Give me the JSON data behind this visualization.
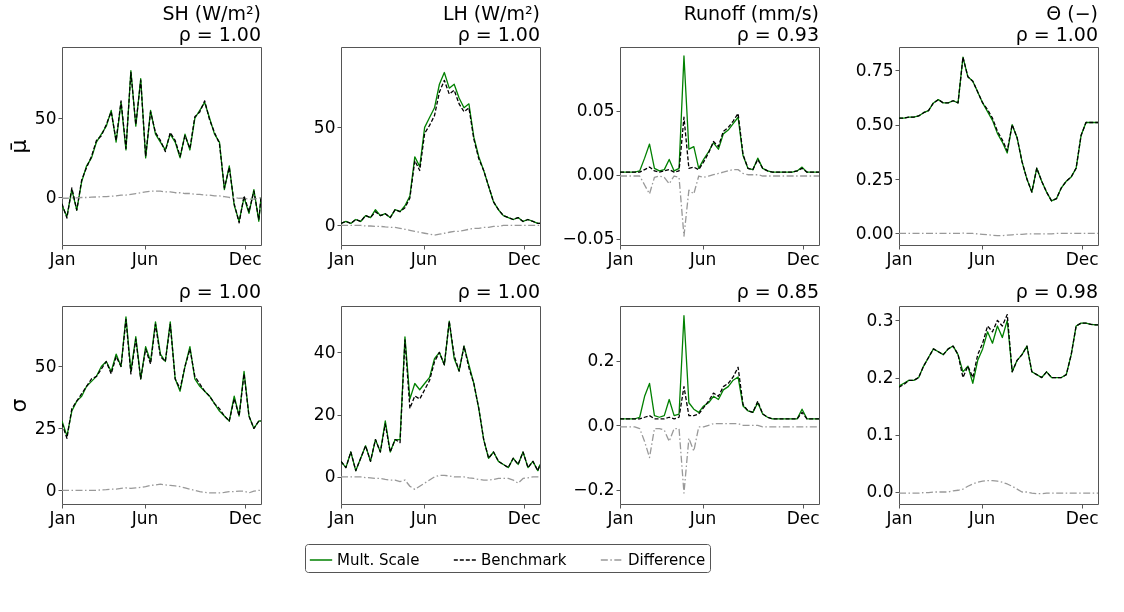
{
  "chart_data": [
    {
      "type": "line",
      "title": "SH (W/m²)",
      "subtitle": "ρ = 1.00",
      "ylabel": "μ̄",
      "x": [
        "--01-01",
        "--01-10",
        "--01-19",
        "--01-28",
        "--02-06",
        "--02-15",
        "--02-24",
        "--03-05",
        "--03-14",
        "--03-23",
        "--04-01",
        "--04-10",
        "--04-19",
        "--04-28",
        "--05-07",
        "--05-16",
        "--05-25",
        "--06-03",
        "--06-12",
        "--06-21",
        "--06-30",
        "--07-09",
        "--07-18",
        "--07-27",
        "--08-05",
        "--08-14",
        "--08-23",
        "--09-01",
        "--09-10",
        "--09-19",
        "--09-28",
        "--10-07",
        "--10-16",
        "--10-25",
        "--11-03",
        "--11-12",
        "--11-21",
        "--11-30",
        "--12-09",
        "--12-18",
        "--12-27",
        "--12-31"
      ],
      "xlim": [
        "--01-01",
        "--12-31"
      ],
      "xticks": [
        {
          "value": "--01-01",
          "label": "Jan"
        },
        {
          "value": "--06-01",
          "label": "Jun"
        },
        {
          "value": "--12-01",
          "label": "Dec"
        }
      ],
      "ylim": [
        -30,
        95
      ],
      "yticks": [
        0,
        50
      ],
      "series": [
        {
          "color": "#008000",
          "line_style": "solid",
          "values": [
            -5,
            -12,
            5,
            -8,
            10,
            20,
            25,
            35,
            40,
            45,
            55,
            35,
            60,
            30,
            80,
            45,
            75,
            25,
            55,
            40,
            35,
            30,
            40,
            35,
            25,
            40,
            30,
            50,
            55,
            60,
            50,
            40,
            35,
            5,
            20,
            -5,
            -15,
            0,
            -10,
            5,
            -15,
            0
          ]
        },
        {
          "color": "#000000",
          "line_style": "dashed",
          "values": [
            -4,
            -13,
            6,
            -8,
            11,
            19,
            26,
            36,
            39,
            46,
            54,
            36,
            61,
            31,
            79,
            46,
            74,
            26,
            54,
            41,
            36,
            29,
            41,
            36,
            26,
            39,
            31,
            51,
            54,
            61,
            49,
            41,
            34,
            6,
            19,
            -4,
            -16,
            1,
            -9,
            4,
            -14,
            0
          ]
        },
        {
          "color": "#999999",
          "line_style": "dashdot",
          "values": [
            -0.5,
            -0.5,
            -0.3,
            -0.2,
            0,
            0,
            0.2,
            0.3,
            0.5,
            0.5,
            0.8,
            1,
            1.5,
            1.5,
            2,
            2.5,
            3,
            3.5,
            4,
            4,
            4,
            3.5,
            3.5,
            3,
            3,
            2.5,
            2.5,
            2,
            2,
            1.5,
            1.5,
            1,
            1,
            0.5,
            0,
            0,
            -0.5,
            -0.5,
            -1,
            -1,
            -0.5,
            0
          ]
        }
      ]
    },
    {
      "type": "line",
      "title": "LH (W/m²)",
      "subtitle": "ρ = 1.00",
      "x": [
        "--01-01",
        "--01-10",
        "--01-19",
        "--01-28",
        "--02-06",
        "--02-15",
        "--02-24",
        "--03-05",
        "--03-14",
        "--03-23",
        "--04-01",
        "--04-10",
        "--04-19",
        "--04-28",
        "--05-07",
        "--05-16",
        "--05-25",
        "--06-03",
        "--06-12",
        "--06-21",
        "--06-30",
        "--07-09",
        "--07-18",
        "--07-27",
        "--08-05",
        "--08-14",
        "--08-23",
        "--09-01",
        "--09-10",
        "--09-19",
        "--09-28",
        "--10-07",
        "--10-16",
        "--10-25",
        "--11-03",
        "--11-12",
        "--11-21",
        "--11-30",
        "--12-09",
        "--12-18",
        "--12-27",
        "--12-31"
      ],
      "xlim": [
        "--01-01",
        "--12-31"
      ],
      "xticks": [
        {
          "value": "--01-01",
          "label": "Jan"
        },
        {
          "value": "--06-01",
          "label": "Jun"
        },
        {
          "value": "--12-01",
          "label": "Dec"
        }
      ],
      "ylim": [
        -10,
        91
      ],
      "yticks": [
        0,
        50
      ],
      "series": [
        {
          "color": "#008000",
          "line_style": "solid",
          "values": [
            1,
            2,
            1,
            3,
            2,
            5,
            4,
            8,
            5,
            6,
            4,
            8,
            7,
            10,
            15,
            35,
            30,
            50,
            55,
            60,
            72,
            78,
            70,
            72,
            65,
            60,
            62,
            45,
            35,
            28,
            20,
            12,
            8,
            5,
            4,
            3,
            4,
            2,
            3,
            2,
            1,
            1
          ]
        },
        {
          "color": "#000000",
          "line_style": "dashed",
          "values": [
            1,
            2,
            1,
            3,
            2,
            5,
            4,
            7,
            5,
            6,
            4,
            8,
            7,
            9,
            14,
            33,
            28,
            47,
            51,
            56,
            68,
            74,
            67,
            69,
            62,
            58,
            60,
            44,
            34,
            28,
            20,
            12,
            8,
            5,
            4,
            3,
            4,
            2,
            3,
            2,
            1,
            1
          ]
        },
        {
          "color": "#999999",
          "line_style": "dashdot",
          "values": [
            0,
            0,
            0,
            0,
            0,
            -0.3,
            -0.3,
            -0.5,
            -0.5,
            -0.8,
            -1,
            -1,
            -1.5,
            -2,
            -2.5,
            -3,
            -3.5,
            -4,
            -4.5,
            -5,
            -4.5,
            -4,
            -3.5,
            -3,
            -3,
            -2.5,
            -2,
            -1.5,
            -1.5,
            -1,
            -1,
            -0.5,
            -0.5,
            0,
            0,
            0,
            0,
            0,
            0,
            0,
            0,
            0
          ]
        }
      ]
    },
    {
      "type": "line",
      "title": "Runoff (mm/s)",
      "subtitle": "ρ = 0.93",
      "x": [
        "--01-01",
        "--01-10",
        "--01-19",
        "--01-28",
        "--02-06",
        "--02-15",
        "--02-24",
        "--03-05",
        "--03-14",
        "--03-23",
        "--04-01",
        "--04-10",
        "--04-19",
        "--04-28",
        "--05-07",
        "--05-16",
        "--05-25",
        "--06-03",
        "--06-12",
        "--06-21",
        "--06-30",
        "--07-09",
        "--07-18",
        "--07-27",
        "--08-05",
        "--08-14",
        "--08-23",
        "--09-01",
        "--09-10",
        "--09-19",
        "--09-28",
        "--10-07",
        "--10-16",
        "--10-25",
        "--11-03",
        "--11-12",
        "--11-21",
        "--11-30",
        "--12-09",
        "--12-18",
        "--12-27",
        "--12-31"
      ],
      "xlim": [
        "--01-01",
        "--12-31"
      ],
      "xticks": [
        {
          "value": "--01-01",
          "label": "Jan"
        },
        {
          "value": "--06-01",
          "label": "Jun"
        },
        {
          "value": "--12-01",
          "label": "Dec"
        }
      ],
      "ylim": [
        -0.055,
        0.1
      ],
      "yticks": [
        {
          "value": -0.05,
          "label": "−0.05"
        },
        {
          "value": 0,
          "label": "0.00"
        },
        {
          "value": 0.05,
          "label": "0.05"
        }
      ],
      "series": [
        {
          "color": "#008000",
          "line_style": "solid",
          "values": [
            0.002,
            0.002,
            0.002,
            0.002,
            0.003,
            0.013,
            0.024,
            0.005,
            0.003,
            0.004,
            0.012,
            0.003,
            0.005,
            0.093,
            0.02,
            0.022,
            0.005,
            0.012,
            0.018,
            0.025,
            0.02,
            0.032,
            0.035,
            0.04,
            0.045,
            0.015,
            0.005,
            0.004,
            0.013,
            0.005,
            0.003,
            0.002,
            0.002,
            0.002,
            0.002,
            0.002,
            0.003,
            0.006,
            0.002,
            0.002,
            0.002,
            0.002
          ]
        },
        {
          "color": "#000000",
          "line_style": "dashed",
          "values": [
            0.002,
            0.002,
            0.002,
            0.002,
            0.002,
            0.004,
            0.006,
            0.003,
            0.002,
            0.003,
            0.004,
            0.002,
            0.003,
            0.045,
            0.005,
            0.006,
            0.004,
            0.01,
            0.017,
            0.026,
            0.022,
            0.034,
            0.037,
            0.042,
            0.048,
            0.016,
            0.005,
            0.004,
            0.012,
            0.005,
            0.003,
            0.002,
            0.002,
            0.002,
            0.002,
            0.002,
            0.003,
            0.005,
            0.002,
            0.002,
            0.002,
            0.002
          ]
        },
        {
          "color": "#999999",
          "line_style": "dashdot",
          "values": [
            -0.001,
            -0.001,
            -0.001,
            -0.001,
            -0.001,
            -0.008,
            -0.015,
            -0.002,
            -0.001,
            -0.002,
            -0.007,
            -0.001,
            -0.002,
            -0.048,
            -0.012,
            -0.015,
            -0.001,
            -0.002,
            -0.001,
            0,
            0.001,
            0.002,
            0.003,
            0.004,
            0.004,
            0.001,
            0,
            0,
            0,
            -0.001,
            -0.001,
            -0.001,
            -0.001,
            -0.001,
            -0.001,
            -0.001,
            -0.001,
            -0.001,
            -0.001,
            -0.001,
            -0.001,
            -0.001
          ]
        }
      ]
    },
    {
      "type": "line",
      "title": "Θ (−)",
      "subtitle": "ρ = 1.00",
      "x": [
        "--01-01",
        "--01-10",
        "--01-19",
        "--01-28",
        "--02-06",
        "--02-15",
        "--02-24",
        "--03-05",
        "--03-14",
        "--03-23",
        "--04-01",
        "--04-10",
        "--04-19",
        "--04-28",
        "--05-07",
        "--05-16",
        "--05-25",
        "--06-03",
        "--06-12",
        "--06-21",
        "--06-30",
        "--07-09",
        "--07-18",
        "--07-27",
        "--08-05",
        "--08-14",
        "--08-23",
        "--09-01",
        "--09-10",
        "--09-19",
        "--09-28",
        "--10-07",
        "--10-16",
        "--10-25",
        "--11-03",
        "--11-12",
        "--11-21",
        "--11-30",
        "--12-09",
        "--12-18",
        "--12-27",
        "--12-31"
      ],
      "xlim": [
        "--01-01",
        "--12-31"
      ],
      "xticks": [
        {
          "value": "--01-01",
          "label": "Jan"
        },
        {
          "value": "--06-01",
          "label": "Jun"
        },
        {
          "value": "--12-01",
          "label": "Dec"
        }
      ],
      "ylim": [
        -0.053,
        0.857
      ],
      "yticks": [
        {
          "value": 0,
          "label": "0.00"
        },
        {
          "value": 0.25,
          "label": "0.25"
        },
        {
          "value": 0.5,
          "label": "0.50"
        },
        {
          "value": 0.75,
          "label": "0.75"
        }
      ],
      "series": [
        {
          "color": "#008000",
          "line_style": "solid",
          "values": [
            0.53,
            0.53,
            0.535,
            0.535,
            0.54,
            0.555,
            0.565,
            0.6,
            0.615,
            0.6,
            0.6,
            0.61,
            0.6,
            0.81,
            0.72,
            0.7,
            0.65,
            0.6,
            0.56,
            0.52,
            0.46,
            0.42,
            0.37,
            0.5,
            0.44,
            0.33,
            0.25,
            0.19,
            0.3,
            0.24,
            0.19,
            0.15,
            0.16,
            0.21,
            0.24,
            0.26,
            0.3,
            0.45,
            0.51,
            0.51,
            0.51,
            0.51
          ]
        },
        {
          "color": "#000000",
          "line_style": "dashed",
          "values": [
            0.53,
            0.53,
            0.535,
            0.535,
            0.54,
            0.555,
            0.565,
            0.6,
            0.615,
            0.6,
            0.6,
            0.61,
            0.6,
            0.81,
            0.72,
            0.7,
            0.65,
            0.6,
            0.57,
            0.53,
            0.47,
            0.43,
            0.38,
            0.5,
            0.44,
            0.33,
            0.25,
            0.19,
            0.3,
            0.24,
            0.19,
            0.15,
            0.16,
            0.21,
            0.24,
            0.26,
            0.3,
            0.45,
            0.51,
            0.51,
            0.51,
            0.51
          ]
        },
        {
          "color": "#999999",
          "line_style": "dashdot",
          "values": [
            0,
            0,
            0,
            0,
            0,
            0,
            0,
            0,
            0,
            0,
            0,
            0,
            0,
            0.002,
            0,
            0,
            -0.002,
            -0.004,
            -0.006,
            -0.008,
            -0.01,
            -0.01,
            -0.008,
            -0.006,
            -0.004,
            -0.004,
            -0.002,
            -0.002,
            -0.002,
            -0.002,
            -0.002,
            -0.002,
            0,
            0,
            0,
            0,
            0,
            0,
            0,
            0,
            0,
            0
          ]
        }
      ]
    },
    {
      "type": "line",
      "title": "ρ = 1.00",
      "ylabel": "σ",
      "x": [
        "--01-01",
        "--01-10",
        "--01-19",
        "--01-28",
        "--02-06",
        "--02-15",
        "--02-24",
        "--03-05",
        "--03-14",
        "--03-23",
        "--04-01",
        "--04-10",
        "--04-19",
        "--04-28",
        "--05-07",
        "--05-16",
        "--05-25",
        "--06-03",
        "--06-12",
        "--06-21",
        "--06-30",
        "--07-09",
        "--07-18",
        "--07-27",
        "--08-05",
        "--08-14",
        "--08-23",
        "--09-01",
        "--09-10",
        "--09-19",
        "--09-28",
        "--10-07",
        "--10-16",
        "--10-25",
        "--11-03",
        "--11-12",
        "--11-21",
        "--11-30",
        "--12-09",
        "--12-18",
        "--12-27",
        "--12-31"
      ],
      "xlim": [
        "--01-01",
        "--12-31"
      ],
      "xticks": [
        {
          "value": "--01-01",
          "label": "Jan"
        },
        {
          "value": "--06-01",
          "label": "Jun"
        },
        {
          "value": "--12-01",
          "label": "Dec"
        }
      ],
      "ylim": [
        -5.5,
        74.4
      ],
      "yticks": [
        0,
        25,
        50
      ],
      "series": [
        {
          "color": "#008000",
          "line_style": "solid",
          "values": [
            28,
            22,
            32,
            36,
            38,
            42,
            44,
            46,
            50,
            52,
            48,
            55,
            50,
            70,
            48,
            62,
            45,
            58,
            52,
            68,
            55,
            52,
            68,
            45,
            40,
            50,
            58,
            45,
            42,
            40,
            38,
            35,
            32,
            30,
            28,
            38,
            30,
            48,
            30,
            25,
            28,
            28
          ]
        },
        {
          "color": "#000000",
          "line_style": "dashed",
          "values": [
            27,
            21,
            33,
            36,
            39,
            42,
            45,
            46,
            49,
            52,
            47,
            54,
            50,
            69,
            47,
            61,
            45,
            57,
            51,
            67,
            54,
            52,
            67,
            45,
            41,
            50,
            57,
            46,
            43,
            40,
            38,
            35,
            33,
            30,
            28,
            37,
            30,
            47,
            30,
            25,
            28,
            28
          ]
        },
        {
          "color": "#999999",
          "line_style": "dashdot",
          "values": [
            0,
            0,
            0,
            0,
            0,
            0,
            0,
            0,
            0.2,
            0.3,
            0.5,
            0.5,
            0.8,
            1,
            0.8,
            1,
            1.2,
            1.5,
            2,
            2.2,
            2.5,
            2.2,
            2,
            1.8,
            1.5,
            1,
            0.5,
            0,
            -0.5,
            -0.8,
            -1,
            -1,
            -1,
            -0.8,
            -0.5,
            -0.5,
            -0.3,
            -0.3,
            -1,
            -0.3,
            0,
            0
          ]
        }
      ]
    },
    {
      "type": "line",
      "title": "ρ = 1.00",
      "legend": "bottom",
      "x": [
        "--01-01",
        "--01-10",
        "--01-19",
        "--01-28",
        "--02-06",
        "--02-15",
        "--02-24",
        "--03-05",
        "--03-14",
        "--03-23",
        "--04-01",
        "--04-10",
        "--04-19",
        "--04-28",
        "--05-07",
        "--05-16",
        "--05-25",
        "--06-03",
        "--06-12",
        "--06-21",
        "--06-30",
        "--07-09",
        "--07-18",
        "--07-27",
        "--08-05",
        "--08-14",
        "--08-23",
        "--09-01",
        "--09-10",
        "--09-19",
        "--09-28",
        "--10-07",
        "--10-16",
        "--10-25",
        "--11-03",
        "--11-12",
        "--11-21",
        "--11-30",
        "--12-09",
        "--12-18",
        "--12-27",
        "--12-31"
      ],
      "xlim": [
        "--01-01",
        "--12-31"
      ],
      "xticks": [
        {
          "value": "--01-01",
          "label": "Jan"
        },
        {
          "value": "--06-01",
          "label": "Jun"
        },
        {
          "value": "--12-01",
          "label": "Dec"
        }
      ],
      "ylim": [
        -8.7,
        54.9
      ],
      "yticks": [
        0,
        20,
        40
      ],
      "series": [
        {
          "name": "Mult. Scale",
          "color": "#008000",
          "line_style": "solid",
          "values": [
            5,
            3,
            8,
            2,
            6,
            10,
            5,
            12,
            8,
            18,
            8,
            12,
            12,
            45,
            25,
            30,
            28,
            30,
            32,
            38,
            40,
            36,
            50,
            38,
            34,
            42,
            36,
            30,
            22,
            12,
            6,
            8,
            5,
            4,
            3,
            6,
            4,
            8,
            3,
            5,
            2,
            4
          ]
        },
        {
          "name": "Benchmark",
          "color": "#000000",
          "line_style": "dashed",
          "values": [
            5,
            3,
            8,
            2,
            6,
            10,
            5,
            12,
            8,
            17,
            8,
            12,
            11,
            44,
            22,
            26,
            25,
            28,
            31,
            37,
            40,
            36,
            50,
            39,
            34,
            42,
            35,
            30,
            22,
            12,
            6,
            8,
            5,
            4,
            3,
            6,
            4,
            8,
            3,
            5,
            2,
            4
          ]
        },
        {
          "name": "Difference",
          "color": "#999999",
          "line_style": "dashdot",
          "values": [
            0,
            0,
            0,
            0,
            0,
            -0.2,
            -0.3,
            -0.5,
            -0.5,
            -0.8,
            -1,
            -1,
            -1.5,
            -1,
            -3,
            -4,
            -3,
            -2,
            -1,
            0,
            0.5,
            0.5,
            0.3,
            0,
            0,
            0,
            -0.3,
            -0.5,
            -0.8,
            -1,
            -1,
            -0.8,
            -0.5,
            -0.5,
            -0.5,
            -1,
            -2,
            -0.5,
            -0.3,
            0,
            0,
            0
          ]
        }
      ]
    },
    {
      "type": "line",
      "title": "ρ = 0.85",
      "x": [
        "--01-01",
        "--01-10",
        "--01-19",
        "--01-28",
        "--02-06",
        "--02-15",
        "--02-24",
        "--03-05",
        "--03-14",
        "--03-23",
        "--04-01",
        "--04-10",
        "--04-19",
        "--04-28",
        "--05-07",
        "--05-16",
        "--05-25",
        "--06-03",
        "--06-12",
        "--06-21",
        "--06-30",
        "--07-09",
        "--07-18",
        "--07-27",
        "--08-05",
        "--08-14",
        "--08-23",
        "--09-01",
        "--09-10",
        "--09-19",
        "--09-28",
        "--10-07",
        "--10-16",
        "--10-25",
        "--11-03",
        "--11-12",
        "--11-21",
        "--11-30",
        "--12-09",
        "--12-18",
        "--12-27",
        "--12-31"
      ],
      "xlim": [
        "--01-01",
        "--12-31"
      ],
      "xticks": [
        {
          "value": "--01-01",
          "label": "Jan"
        },
        {
          "value": "--06-01",
          "label": "Jun"
        },
        {
          "value": "--12-01",
          "label": "Dec"
        }
      ],
      "ylim": [
        -0.244,
        0.37
      ],
      "yticks": [
        {
          "value": -0.2,
          "label": "−0.2"
        },
        {
          "value": 0,
          "label": "0.0"
        },
        {
          "value": 0.2,
          "label": "0.2"
        }
      ],
      "series": [
        {
          "color": "#008000",
          "line_style": "solid",
          "values": [
            0.02,
            0.02,
            0.02,
            0.02,
            0.025,
            0.09,
            0.13,
            0.03,
            0.025,
            0.03,
            0.08,
            0.03,
            0.035,
            0.34,
            0.07,
            0.05,
            0.04,
            0.06,
            0.07,
            0.09,
            0.08,
            0.11,
            0.12,
            0.14,
            0.15,
            0.06,
            0.045,
            0.04,
            0.07,
            0.035,
            0.025,
            0.02,
            0.02,
            0.02,
            0.02,
            0.02,
            0.02,
            0.05,
            0.02,
            0.02,
            0.02,
            0.02
          ]
        },
        {
          "color": "#000000",
          "line_style": "dashed",
          "values": [
            0.02,
            0.02,
            0.02,
            0.02,
            0.02,
            0.025,
            0.03,
            0.02,
            0.02,
            0.02,
            0.025,
            0.02,
            0.025,
            0.12,
            0.03,
            0.03,
            0.035,
            0.055,
            0.075,
            0.1,
            0.09,
            0.12,
            0.13,
            0.15,
            0.18,
            0.065,
            0.045,
            0.04,
            0.075,
            0.035,
            0.025,
            0.02,
            0.02,
            0.02,
            0.02,
            0.02,
            0.02,
            0.04,
            0.02,
            0.02,
            0.02,
            0.02
          ]
        },
        {
          "color": "#999999",
          "line_style": "dashdot",
          "values": [
            -0.005,
            -0.005,
            -0.005,
            -0.005,
            -0.01,
            -0.05,
            -0.1,
            -0.01,
            -0.01,
            -0.015,
            -0.05,
            -0.01,
            -0.01,
            -0.21,
            -0.04,
            -0.08,
            -0.005,
            -0.005,
            0,
            0.005,
            0.005,
            0.005,
            0.005,
            0.005,
            0.005,
            0,
            0,
            0,
            0,
            -0.005,
            -0.005,
            -0.005,
            -0.005,
            -0.005,
            -0.005,
            -0.005,
            -0.005,
            -0.005,
            -0.005,
            -0.005,
            -0.005,
            -0.005
          ]
        }
      ]
    },
    {
      "type": "line",
      "title": "ρ = 0.98",
      "x": [
        "--01-01",
        "--01-10",
        "--01-19",
        "--01-28",
        "--02-06",
        "--02-15",
        "--02-24",
        "--03-05",
        "--03-14",
        "--03-23",
        "--04-01",
        "--04-10",
        "--04-19",
        "--04-28",
        "--05-07",
        "--05-16",
        "--05-25",
        "--06-03",
        "--06-12",
        "--06-21",
        "--06-30",
        "--07-09",
        "--07-18",
        "--07-27",
        "--08-05",
        "--08-14",
        "--08-23",
        "--09-01",
        "--09-10",
        "--09-19",
        "--09-28",
        "--10-07",
        "--10-16",
        "--10-25",
        "--11-03",
        "--11-12",
        "--11-21",
        "--11-30",
        "--12-09",
        "--12-18",
        "--12-27",
        "--12-31"
      ],
      "xlim": [
        "--01-01",
        "--12-31"
      ],
      "xticks": [
        {
          "value": "--01-01",
          "label": "Jan"
        },
        {
          "value": "--06-01",
          "label": "Jun"
        },
        {
          "value": "--12-01",
          "label": "Dec"
        }
      ],
      "ylim": [
        -0.021,
        0.325
      ],
      "yticks": [
        {
          "value": 0,
          "label": "0.0"
        },
        {
          "value": 0.1,
          "label": "0.1"
        },
        {
          "value": 0.2,
          "label": "0.2"
        },
        {
          "value": 0.3,
          "label": "0.3"
        }
      ],
      "series": [
        {
          "color": "#008000",
          "line_style": "solid",
          "values": [
            0.185,
            0.19,
            0.195,
            0.195,
            0.2,
            0.22,
            0.235,
            0.25,
            0.245,
            0.24,
            0.25,
            0.255,
            0.24,
            0.21,
            0.22,
            0.19,
            0.23,
            0.25,
            0.28,
            0.26,
            0.29,
            0.27,
            0.3,
            0.21,
            0.23,
            0.24,
            0.255,
            0.21,
            0.205,
            0.2,
            0.21,
            0.2,
            0.2,
            0.2,
            0.205,
            0.24,
            0.29,
            0.295,
            0.295,
            0.293,
            0.292,
            0.292
          ]
        },
        {
          "color": "#000000",
          "line_style": "dashed",
          "values": [
            0.183,
            0.188,
            0.195,
            0.195,
            0.2,
            0.22,
            0.235,
            0.25,
            0.245,
            0.24,
            0.25,
            0.255,
            0.24,
            0.2,
            0.22,
            0.2,
            0.24,
            0.26,
            0.29,
            0.28,
            0.3,
            0.29,
            0.31,
            0.21,
            0.23,
            0.24,
            0.255,
            0.21,
            0.205,
            0.2,
            0.21,
            0.2,
            0.2,
            0.2,
            0.205,
            0.24,
            0.29,
            0.295,
            0.295,
            0.293,
            0.292,
            0.292
          ]
        },
        {
          "color": "#999999",
          "line_style": "dashdot",
          "values": [
            -0.002,
            -0.002,
            -0.002,
            -0.002,
            -0.002,
            -0.001,
            -0.001,
            0,
            0,
            0,
            0,
            0.002,
            0.003,
            0.005,
            0.01,
            0.014,
            0.017,
            0.019,
            0.02,
            0.02,
            0.019,
            0.017,
            0.014,
            0.01,
            0.005,
            0,
            0,
            -0.002,
            -0.003,
            -0.003,
            -0.002,
            -0.002,
            -0.002,
            -0.002,
            -0.002,
            -0.002,
            -0.002,
            -0.002,
            -0.002,
            -0.002,
            -0.002,
            -0.002
          ]
        }
      ]
    }
  ]
}
